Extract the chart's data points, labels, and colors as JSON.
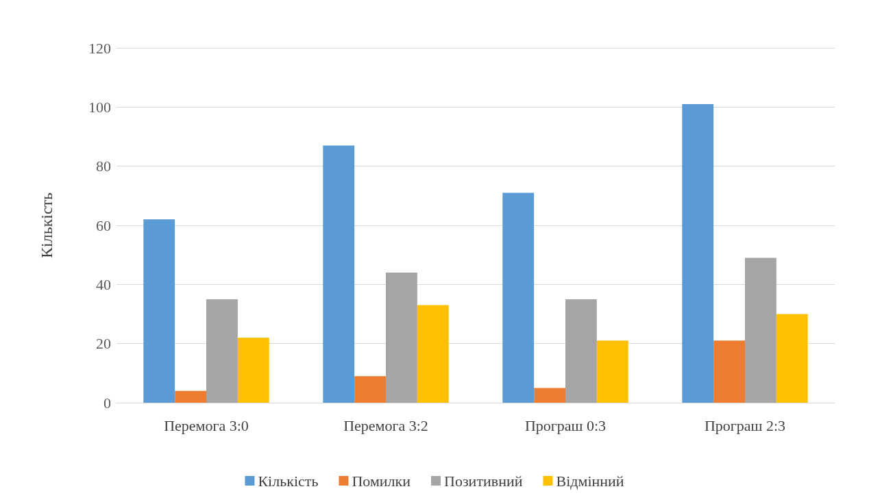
{
  "chart_data": {
    "type": "bar",
    "ylabel": "Кількість",
    "categories": [
      "Перемога 3:0",
      "Перемога 3:2",
      "Програш 0:3",
      "Програш 2:3"
    ],
    "series": [
      {
        "name": "Кількість",
        "color": "#5b9bd5",
        "values": [
          62,
          87,
          71,
          101
        ]
      },
      {
        "name": "Помилки",
        "color": "#ed7d31",
        "values": [
          4,
          9,
          5,
          21
        ]
      },
      {
        "name": "Позитивний",
        "color": "#a5a5a5",
        "values": [
          35,
          44,
          35,
          49
        ]
      },
      {
        "name": "Відмінний",
        "color": "#ffc000",
        "values": [
          22,
          33,
          21,
          30
        ]
      }
    ],
    "ylim": [
      0,
      120
    ],
    "yticks": [
      0,
      20,
      40,
      60,
      80,
      100,
      120
    ],
    "grid": "y",
    "legend": "bottom"
  }
}
